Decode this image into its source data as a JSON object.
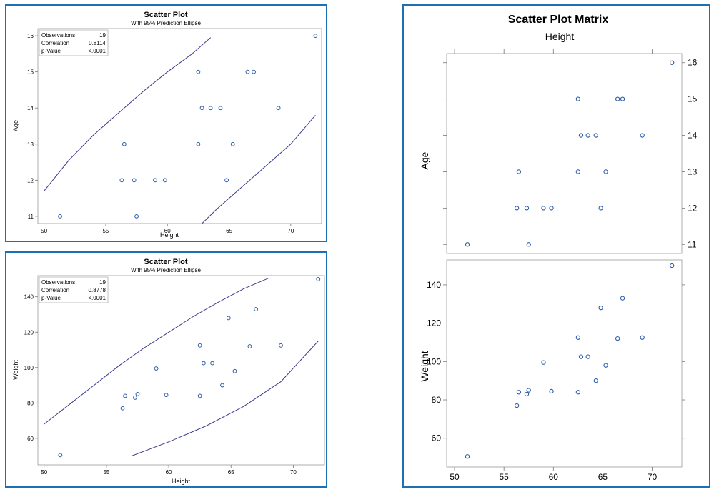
{
  "chart_data": [
    {
      "type": "scatter",
      "title": "Scatter Plot",
      "subtitle": "With 95% Prediction Ellipse",
      "xlabel": "Height",
      "ylabel": "Age",
      "xlim": [
        49.5,
        72.5
      ],
      "ylim": [
        10.8,
        16.2
      ],
      "xticks": [
        50,
        55,
        60,
        65,
        70
      ],
      "yticks": [
        11,
        12,
        13,
        14,
        15,
        16
      ],
      "stats": [
        {
          "label": "Observations",
          "value": "19"
        },
        {
          "label": "Correlation",
          "value": "0.8114"
        },
        {
          "label": "p-Value",
          "value": "<.0001"
        }
      ],
      "points": [
        [
          51.3,
          11
        ],
        [
          56.3,
          12
        ],
        [
          56.5,
          13
        ],
        [
          57.3,
          12
        ],
        [
          57.5,
          11
        ],
        [
          59.0,
          12
        ],
        [
          59.8,
          12
        ],
        [
          62.5,
          15
        ],
        [
          62.5,
          13
        ],
        [
          62.8,
          14
        ],
        [
          63.5,
          14
        ],
        [
          64.3,
          14
        ],
        [
          64.8,
          12
        ],
        [
          65.3,
          13
        ],
        [
          66.5,
          15
        ],
        [
          67.0,
          15
        ],
        [
          69.0,
          14
        ],
        [
          72.0,
          16
        ]
      ],
      "ellipse_upper": [
        [
          50,
          11.7
        ],
        [
          52,
          12.55
        ],
        [
          54,
          13.25
        ],
        [
          56,
          13.85
        ],
        [
          58,
          14.45
        ],
        [
          60,
          15.0
        ],
        [
          62,
          15.5
        ],
        [
          63.5,
          15.95
        ]
      ],
      "ellipse_lower": [
        [
          62.8,
          10.8
        ],
        [
          64,
          11.2
        ],
        [
          66,
          11.8
        ],
        [
          68,
          12.4
        ],
        [
          70,
          13.0
        ],
        [
          72,
          13.8
        ]
      ]
    },
    {
      "type": "scatter",
      "title": "Scatter Plot",
      "subtitle": "With 95% Prediction Ellipse",
      "xlabel": "Height",
      "ylabel": "Weight",
      "xlim": [
        49.5,
        72.5
      ],
      "ylim": [
        45,
        152
      ],
      "xticks": [
        50,
        55,
        60,
        65,
        70
      ],
      "yticks": [
        60,
        80,
        100,
        120,
        140
      ],
      "stats": [
        {
          "label": "Observations",
          "value": "19"
        },
        {
          "label": "Correlation",
          "value": "0.8778"
        },
        {
          "label": "p-Value",
          "value": "<.0001"
        }
      ],
      "points": [
        [
          51.3,
          50.5
        ],
        [
          56.3,
          77
        ],
        [
          56.5,
          84
        ],
        [
          57.3,
          83
        ],
        [
          57.5,
          85
        ],
        [
          59.0,
          99.5
        ],
        [
          59.8,
          84.5
        ],
        [
          62.5,
          112.5
        ],
        [
          62.5,
          84
        ],
        [
          62.8,
          102.5
        ],
        [
          63.5,
          102.5
        ],
        [
          64.3,
          90
        ],
        [
          64.8,
          128
        ],
        [
          65.3,
          98
        ],
        [
          66.5,
          112
        ],
        [
          67.0,
          133
        ],
        [
          69.0,
          112.5
        ],
        [
          72.0,
          150
        ]
      ],
      "ellipse_upper": [
        [
          50,
          68
        ],
        [
          52,
          79
        ],
        [
          54,
          90
        ],
        [
          56,
          101
        ],
        [
          58,
          111
        ],
        [
          60,
          120
        ],
        [
          62,
          129
        ],
        [
          64,
          137
        ],
        [
          66,
          144.5
        ],
        [
          68,
          150.5
        ]
      ],
      "ellipse_lower": [
        [
          57,
          50
        ],
        [
          60,
          58
        ],
        [
          63,
          67
        ],
        [
          66,
          78
        ],
        [
          69,
          92
        ],
        [
          72,
          115
        ]
      ]
    },
    {
      "type": "scatter-matrix",
      "title": "Scatter Plot Matrix",
      "column_label": "Height",
      "xticks": [
        50,
        55,
        60,
        65,
        70
      ],
      "xlim": [
        49.2,
        73.0
      ],
      "panels": [
        {
          "ylabel": "Age",
          "ylim": [
            10.75,
            16.25
          ],
          "yticks": [
            11,
            12,
            13,
            14,
            15,
            16
          ],
          "points": [
            [
              51.3,
              11
            ],
            [
              56.3,
              12
            ],
            [
              56.5,
              13
            ],
            [
              57.3,
              12
            ],
            [
              57.5,
              11
            ],
            [
              59.0,
              12
            ],
            [
              59.8,
              12
            ],
            [
              62.5,
              15
            ],
            [
              62.5,
              13
            ],
            [
              62.8,
              14
            ],
            [
              63.5,
              14
            ],
            [
              64.3,
              14
            ],
            [
              64.8,
              12
            ],
            [
              65.3,
              13
            ],
            [
              66.5,
              15
            ],
            [
              67.0,
              15
            ],
            [
              69.0,
              14
            ],
            [
              72.0,
              16
            ]
          ]
        },
        {
          "ylabel": "Weight",
          "ylim": [
            45,
            153
          ],
          "yticks": [
            60,
            80,
            100,
            120,
            140
          ],
          "points": [
            [
              51.3,
              50.5
            ],
            [
              56.3,
              77
            ],
            [
              56.5,
              84
            ],
            [
              57.3,
              83
            ],
            [
              57.5,
              85
            ],
            [
              59.0,
              99.5
            ],
            [
              59.8,
              84.5
            ],
            [
              62.5,
              112.5
            ],
            [
              62.5,
              84
            ],
            [
              62.8,
              102.5
            ],
            [
              63.5,
              102.5
            ],
            [
              64.3,
              90
            ],
            [
              64.8,
              128
            ],
            [
              65.3,
              98
            ],
            [
              66.5,
              112
            ],
            [
              67.0,
              133
            ],
            [
              69.0,
              112.5
            ],
            [
              72.0,
              150
            ]
          ]
        }
      ]
    }
  ]
}
